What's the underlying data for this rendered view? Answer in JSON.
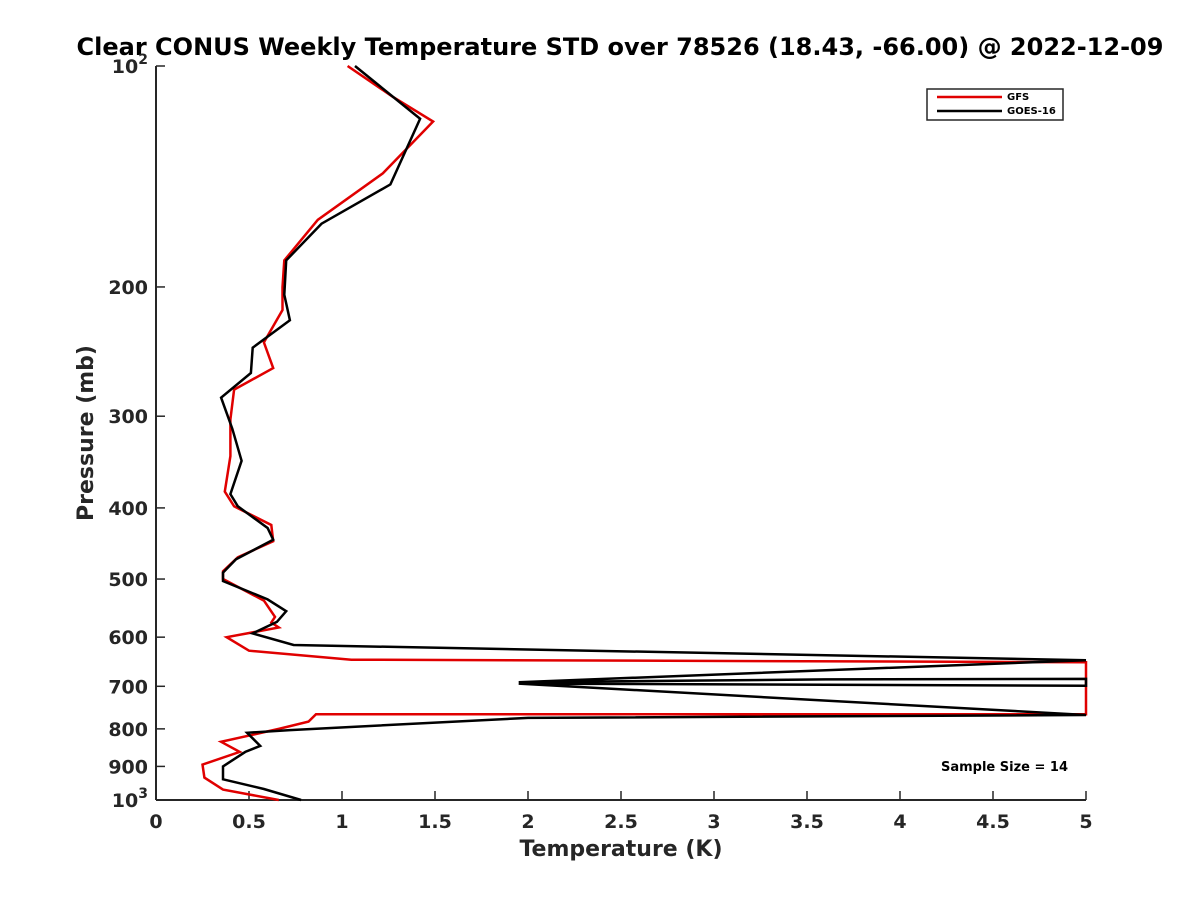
{
  "chart_data": {
    "type": "line",
    "title": "Clear CONUS Weekly Temperature STD over 78526 (18.43, -66.00) @ 2022-12-09",
    "xlabel": "Temperature (K)",
    "ylabel": "Pressure (mb)",
    "xlim": [
      0,
      5
    ],
    "ylim": [
      100,
      1000
    ],
    "yscale": "log",
    "y_reversed": true,
    "grid": false,
    "legend_position": "top-right",
    "x_ticks": [
      0,
      0.5,
      1,
      1.5,
      2,
      2.5,
      3,
      3.5,
      4,
      4.5,
      5
    ],
    "x_tick_labels": [
      "0",
      "0.5",
      "1",
      "1.5",
      "2",
      "2.5",
      "3",
      "3.5",
      "4",
      "4.5",
      "5"
    ],
    "y_ticks": [
      100,
      200,
      300,
      400,
      500,
      600,
      700,
      800,
      900,
      1000
    ],
    "y_tick_labels": [
      {
        "base": "10",
        "exp": "2"
      },
      {
        "base": "200",
        "exp": ""
      },
      {
        "base": "300",
        "exp": ""
      },
      {
        "base": "400",
        "exp": ""
      },
      {
        "base": "500",
        "exp": ""
      },
      {
        "base": "600",
        "exp": ""
      },
      {
        "base": "700",
        "exp": ""
      },
      {
        "base": "800",
        "exp": ""
      },
      {
        "base": "900",
        "exp": ""
      },
      {
        "base": "10",
        "exp": "3"
      }
    ],
    "annotation": "Sample Size = 14",
    "series": [
      {
        "name": "GFS",
        "color": "#e00000",
        "points": [
          [
            1.03,
            100
          ],
          [
            1.27,
            110
          ],
          [
            1.49,
            119
          ],
          [
            1.22,
            140
          ],
          [
            0.87,
            162
          ],
          [
            0.69,
            184
          ],
          [
            0.68,
            200
          ],
          [
            0.68,
            215
          ],
          [
            0.58,
            238
          ],
          [
            0.63,
            258
          ],
          [
            0.42,
            276
          ],
          [
            0.4,
            303
          ],
          [
            0.4,
            340
          ],
          [
            0.37,
            380
          ],
          [
            0.42,
            398
          ],
          [
            0.62,
            422
          ],
          [
            0.63,
            444
          ],
          [
            0.44,
            467
          ],
          [
            0.36,
            488
          ],
          [
            0.36,
            500
          ],
          [
            0.58,
            535
          ],
          [
            0.64,
            563
          ],
          [
            0.62,
            573
          ],
          [
            0.66,
            582
          ],
          [
            0.38,
            600
          ],
          [
            0.5,
            626
          ],
          [
            1.05,
            644
          ],
          [
            5.0,
            649
          ],
          [
            5.0,
            764
          ],
          [
            0.86,
            764
          ],
          [
            0.82,
            782
          ],
          [
            0.66,
            800
          ],
          [
            0.35,
            833
          ],
          [
            0.45,
            860
          ],
          [
            0.25,
            895
          ],
          [
            0.26,
            932
          ],
          [
            0.36,
            968
          ],
          [
            0.66,
            1000
          ]
        ]
      },
      {
        "name": "GOES-16",
        "color": "#000000",
        "points": [
          [
            1.07,
            100
          ],
          [
            1.42,
            118
          ],
          [
            1.26,
            145
          ],
          [
            0.89,
            164
          ],
          [
            0.7,
            184
          ],
          [
            0.69,
            205
          ],
          [
            0.72,
            222
          ],
          [
            0.52,
            242
          ],
          [
            0.51,
            262
          ],
          [
            0.35,
            283
          ],
          [
            0.41,
            312
          ],
          [
            0.46,
            345
          ],
          [
            0.4,
            383
          ],
          [
            0.44,
            398
          ],
          [
            0.6,
            426
          ],
          [
            0.63,
            442
          ],
          [
            0.43,
            470
          ],
          [
            0.36,
            490
          ],
          [
            0.36,
            503
          ],
          [
            0.6,
            533
          ],
          [
            0.7,
            553
          ],
          [
            0.65,
            572
          ],
          [
            0.52,
            593
          ],
          [
            0.74,
            615
          ],
          [
            5.0,
            645
          ],
          [
            1.95,
            691
          ],
          [
            3.6,
            685
          ],
          [
            5.0,
            684
          ],
          [
            5.0,
            699
          ],
          [
            1.95,
            694
          ],
          [
            5.0,
            766
          ],
          [
            2.0,
            773
          ],
          [
            0.72,
            803
          ],
          [
            0.49,
            810
          ],
          [
            0.56,
            844
          ],
          [
            0.48,
            860
          ],
          [
            0.36,
            900
          ],
          [
            0.36,
            937
          ],
          [
            0.58,
            966
          ],
          [
            0.78,
            1000
          ]
        ]
      }
    ]
  }
}
